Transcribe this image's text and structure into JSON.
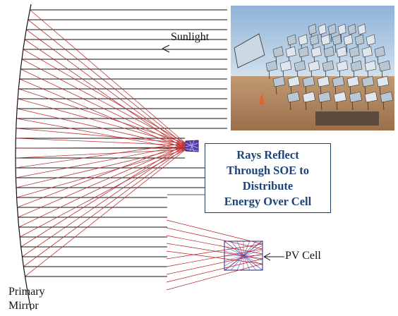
{
  "labels": {
    "sunlight": "Sunlight",
    "pv_cell": "PV Cell",
    "primary_mirror_line1": "Primary",
    "primary_mirror_line2": "Mirror"
  },
  "caption": {
    "line1": "Rays Reflect",
    "line2": "Through SOE to",
    "line3": "Distribute",
    "line4": "Energy Over Cell"
  },
  "colors": {
    "ray_reflected": "#b81f1f",
    "ray_incoming": "#111111",
    "caption_text": "#1d4479",
    "caption_border": "#1c3e66",
    "soe_fill": "#5a3fa8"
  }
}
